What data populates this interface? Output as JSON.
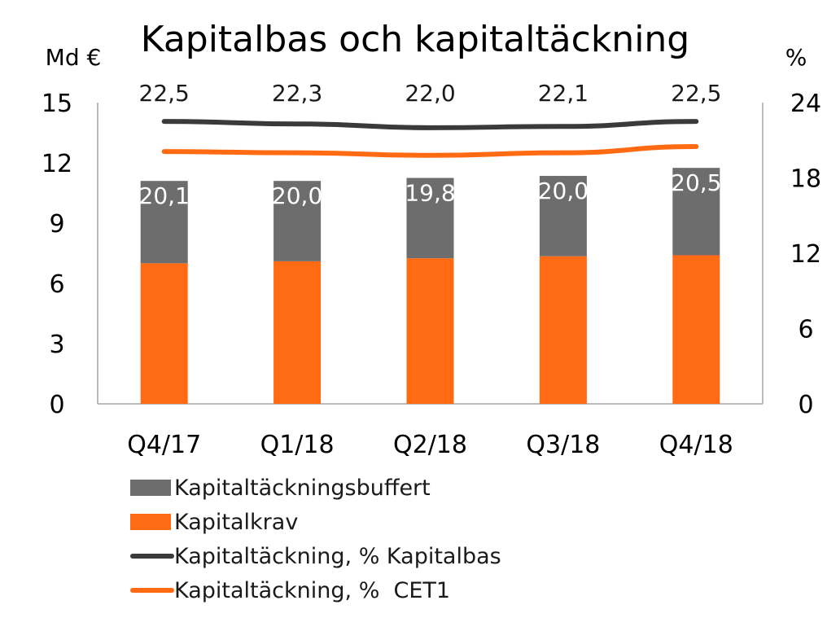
{
  "chart_data": {
    "type": "bar",
    "title": "Kapitalbas och kapitaltäckning",
    "ylabel_left": "Md €",
    "ylabel_right": "%",
    "categories": [
      "Q4/17",
      "Q1/18",
      "Q2/18",
      "Q3/18",
      "Q4/18"
    ],
    "ylim_left": [
      0,
      15
    ],
    "yticks_left": [
      "0",
      "3",
      "6",
      "9",
      "12",
      "15"
    ],
    "ylim_right": [
      0,
      24
    ],
    "yticks_right": [
      "0",
      "6",
      "12",
      "18",
      "24"
    ],
    "grid": false,
    "legend_position": "bottom",
    "stacked_bars": [
      {
        "name": "Kapitalkrav",
        "values": [
          7.0,
          7.1,
          7.25,
          7.35,
          7.4
        ],
        "color": "#ff6a13"
      },
      {
        "name": "Kapitaltäckningsbuffert",
        "values": [
          4.1,
          4.0,
          4.0,
          4.0,
          4.35
        ],
        "color": "#6d6d6d"
      }
    ],
    "lines": [
      {
        "name": "Kapitaltäckning, % Kapitalbas",
        "axis": "right",
        "values": [
          22.5,
          22.3,
          22.0,
          22.1,
          22.5
        ],
        "labels": [
          "22,5",
          "22,3",
          "22,0",
          "22,1",
          "22,5"
        ],
        "color": "#3a3a3a"
      },
      {
        "name": "Kapitaltäckning, %  CET1",
        "axis": "right",
        "values": [
          20.1,
          20.0,
          19.8,
          20.0,
          20.5
        ],
        "labels": [
          "20,1",
          "20,0",
          "19,8",
          "20,0",
          "20,5"
        ],
        "color": "#ff6a13"
      }
    ]
  },
  "legend": [
    {
      "label": "Kapitaltäckningsbuffert",
      "kind": "box",
      "color": "#6d6d6d"
    },
    {
      "label": "Kapitalkrav",
      "kind": "box",
      "color": "#ff6a13"
    },
    {
      "label": "Kapitaltäckning, % Kapitalbas",
      "kind": "line",
      "color": "#3a3a3a"
    },
    {
      "label": "Kapitaltäckning, %  CET1",
      "kind": "line",
      "color": "#ff6a13"
    }
  ]
}
